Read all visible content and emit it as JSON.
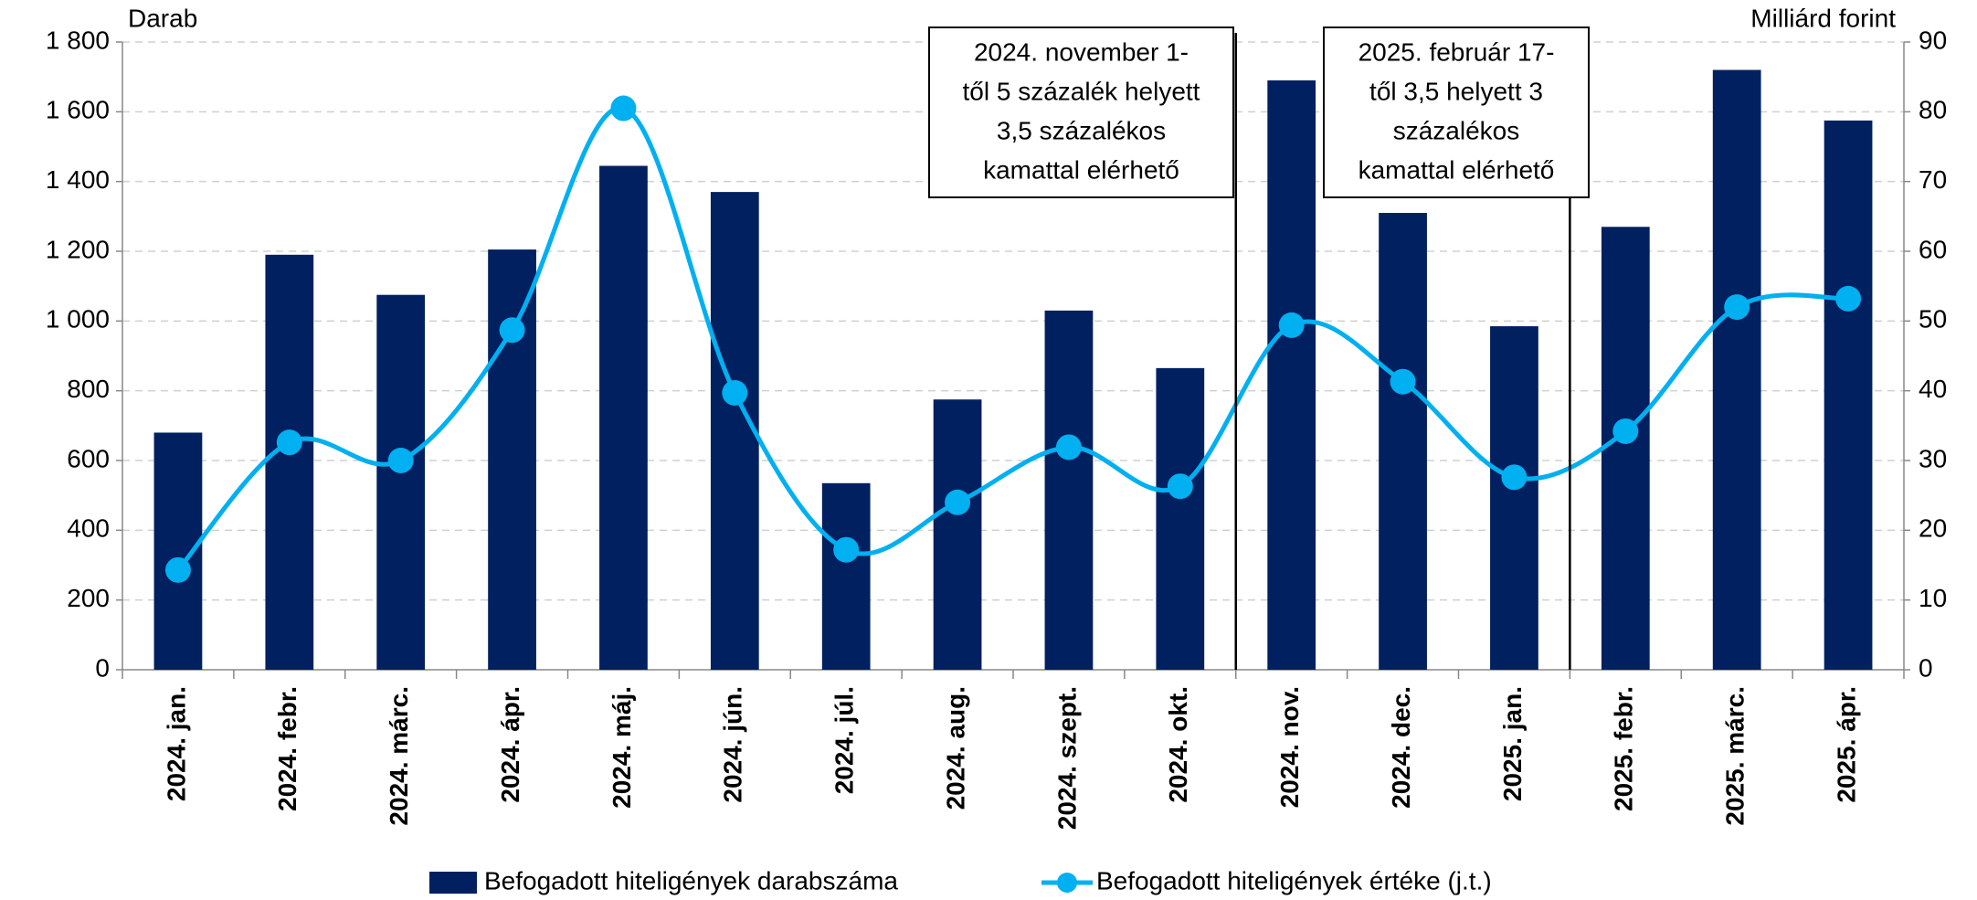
{
  "chart_data": {
    "type": "bar_line",
    "y_label": "Darab",
    "y2_label": "Milliárd forint",
    "categories": [
      "2024. jan.",
      "2024. febr.",
      "2024. márc.",
      "2024. ápr.",
      "2024. máj.",
      "2024. jún.",
      "2024. júl.",
      "2024. aug.",
      "2024. szept.",
      "2024. okt.",
      "2024. nov.",
      "2024. dec.",
      "2025. jan.",
      "2025. febr.",
      "2025. márc.",
      "2025. ápr."
    ],
    "series": [
      {
        "name": "Befogadott hiteligények darabszáma",
        "color": "#002060",
        "values": [
          680,
          1190,
          1075,
          1205,
          1445,
          1370,
          535,
          775,
          1030,
          865,
          1690,
          1310,
          985,
          1270,
          1720,
          1575
        ]
      },
      {
        "name": "Befogadott hiteligények értéke (j.t.)",
        "color": "#00b0f0",
        "axis": "y2",
        "values": [
          14.3,
          32.6,
          30,
          48.7,
          80.5,
          39.7,
          17.2,
          24,
          31.9,
          26.3,
          49.4,
          41.3,
          27.6,
          34.2,
          52,
          53.2
        ]
      }
    ],
    "ylim": [
      0,
      1800
    ],
    "yticks": [
      0,
      {
        "value": 200,
        "label": "200"
      },
      {
        "value": 400,
        "label": "400"
      },
      {
        "value": 600,
        "label": "600"
      },
      {
        "value": 800,
        "label": "800"
      },
      {
        "value": 1000,
        "label": "1 000"
      },
      {
        "value": 1200,
        "label": "1 200"
      },
      {
        "value": 1400,
        "label": "1 400"
      },
      {
        "value": 1600,
        "label": "1 600"
      },
      {
        "value": 1800,
        "label": "1 800"
      }
    ],
    "y2lim": [
      0,
      90
    ],
    "y2ticks": [
      0,
      10,
      20,
      30,
      40,
      50,
      60,
      70,
      80,
      90
    ],
    "grid": true,
    "annotations": [
      {
        "lines": [
          "2024. november 1-",
          "től 5 százalék helyett",
          "3,5 százalékos",
          "kamattal elérhető"
        ]
      },
      {
        "lines": [
          "2025. február 17-",
          "től 3,5 helyett 3",
          "százalékos",
          "kamattal elérhető"
        ]
      }
    ]
  }
}
